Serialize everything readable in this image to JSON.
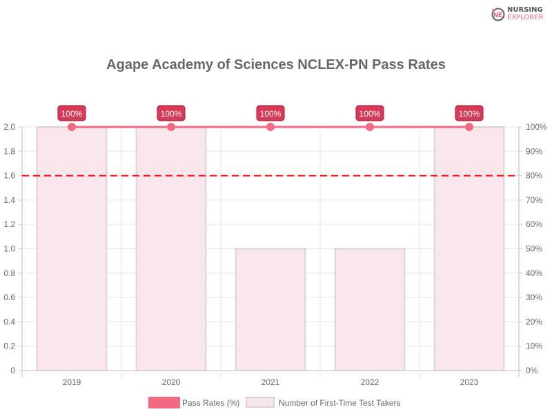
{
  "brand": {
    "line1": "NURSING",
    "line2": "EXPLORER"
  },
  "chart_data": {
    "type": "bar",
    "title": "Agape Academy of Sciences NCLEX-PN Pass Rates",
    "categories": [
      "2019",
      "2020",
      "2021",
      "2022",
      "2023"
    ],
    "series": [
      {
        "name": "Pass Rates (%)",
        "type": "line",
        "axis": "right",
        "values": [
          100,
          100,
          100,
          100,
          100
        ],
        "labels": [
          "100%",
          "100%",
          "100%",
          "100%",
          "100%"
        ],
        "color": "#f06b80"
      },
      {
        "name": "Number of First-Time Test Takers",
        "type": "bar",
        "axis": "left",
        "values": [
          2,
          2,
          1,
          1,
          2
        ],
        "color": "#f8e6ec"
      }
    ],
    "reference_line": {
      "axis": "right",
      "value": 80,
      "color": "#ff0000",
      "style": "dashed"
    },
    "y_left": {
      "ylim": [
        0,
        2
      ],
      "ticks": [
        "0",
        "0.2",
        "0.4",
        "0.6",
        "0.8",
        "1.0",
        "1.2",
        "1.4",
        "1.6",
        "1.8",
        "2.0"
      ]
    },
    "y_right": {
      "ylim": [
        0,
        100
      ],
      "ticks": [
        "0%",
        "10%",
        "20%",
        "30%",
        "40%",
        "50%",
        "60%",
        "70%",
        "80%",
        "90%",
        "100%"
      ]
    },
    "grid": true,
    "legend": "bottom"
  }
}
